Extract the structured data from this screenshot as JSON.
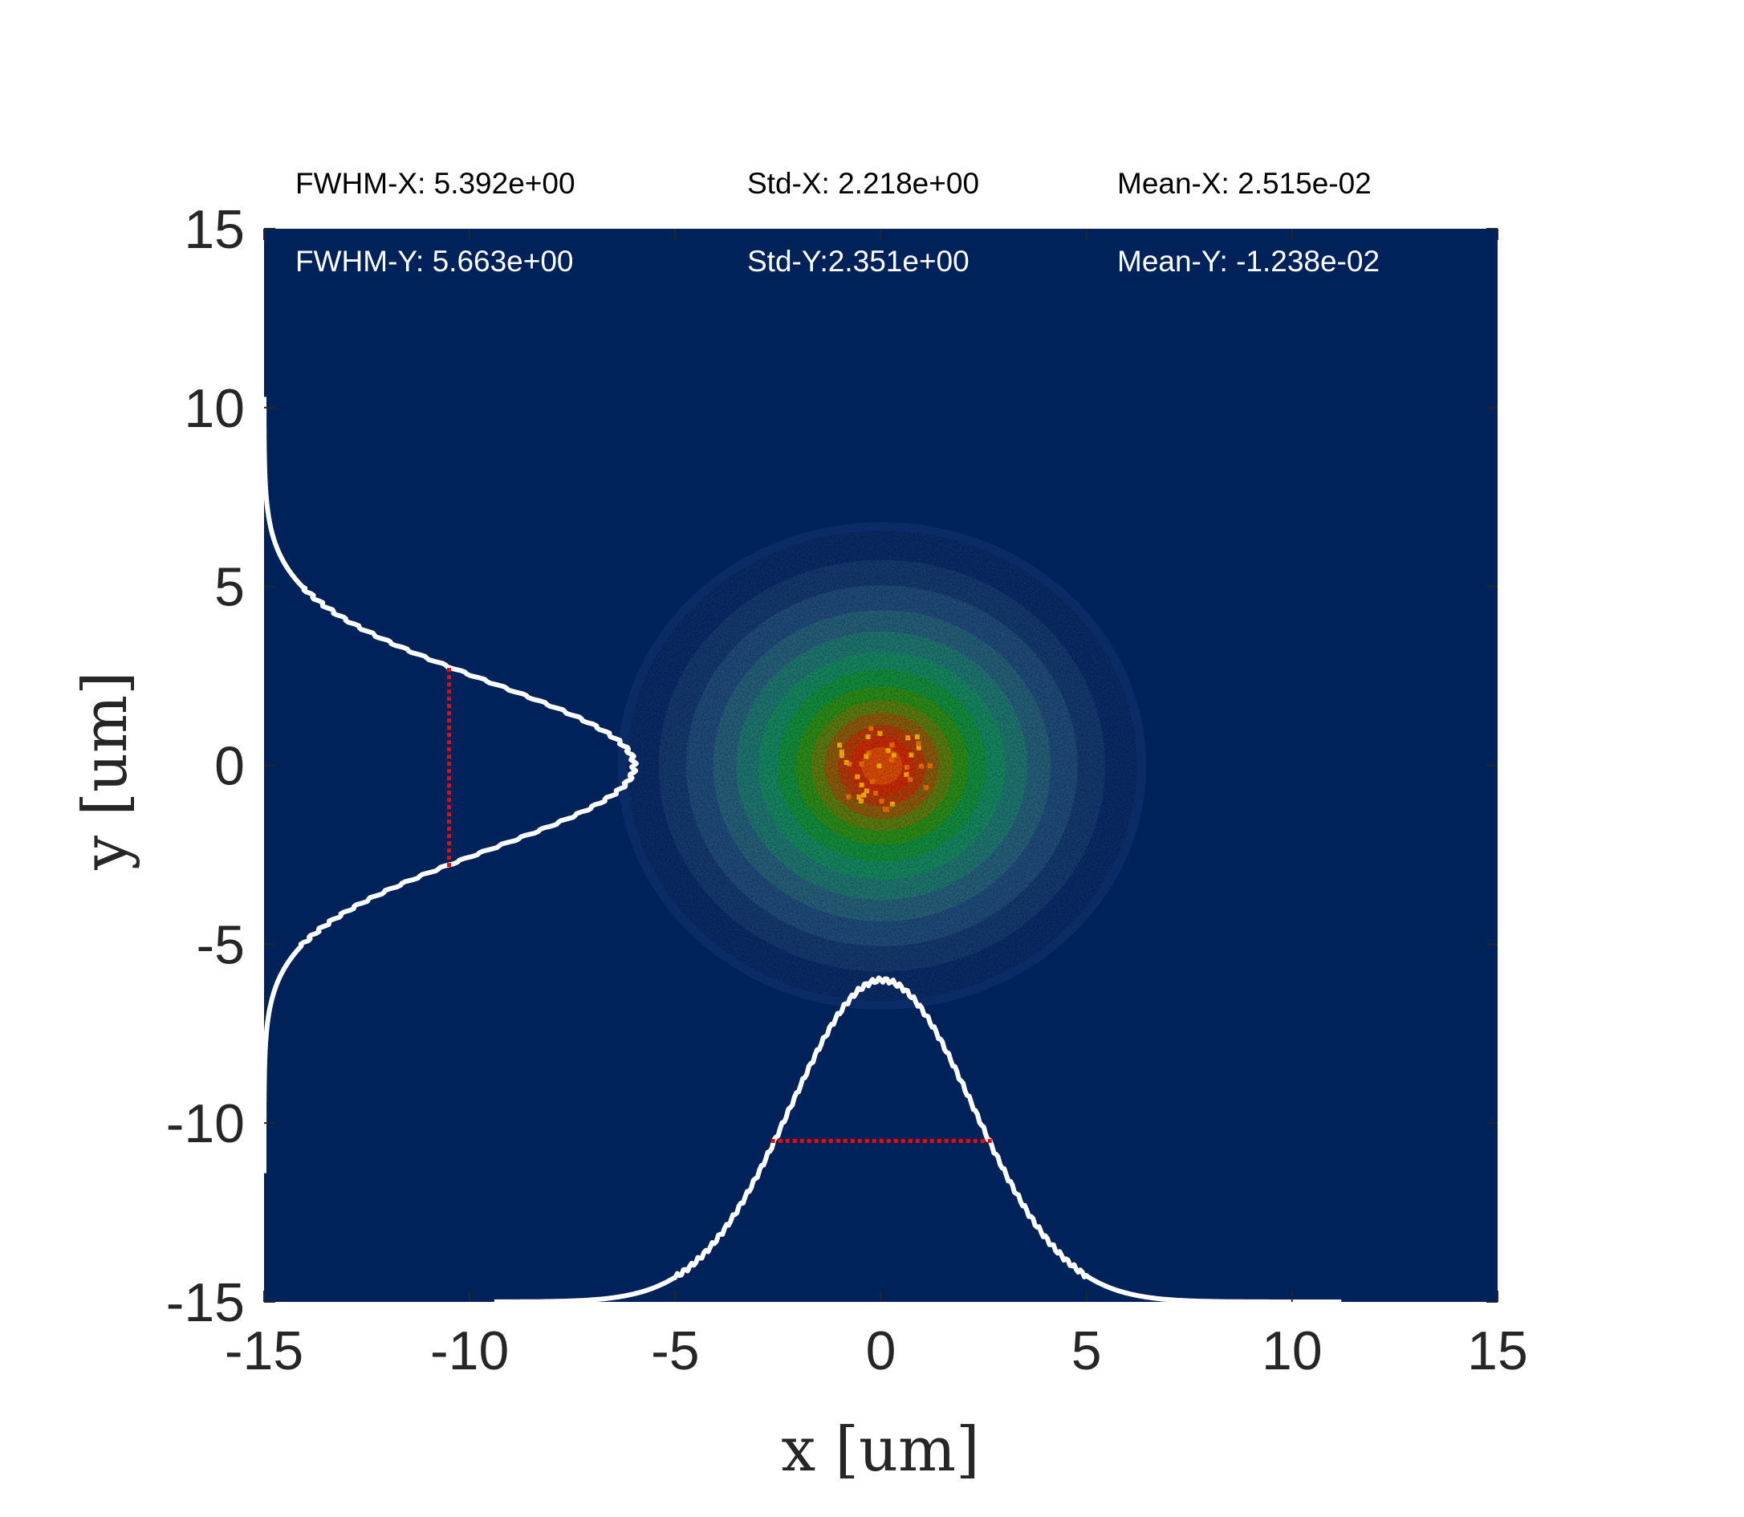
{
  "chart_data": {
    "type": "heatmap",
    "title": "",
    "xlabel": "x [um]",
    "ylabel": "y [um]",
    "xlim": [
      -15,
      15
    ],
    "ylim": [
      -15,
      15
    ],
    "xticks": [
      -15,
      -10,
      -5,
      0,
      5,
      10,
      15
    ],
    "yticks": [
      -15,
      -10,
      -5,
      0,
      5,
      10,
      15
    ],
    "xtick_labels": [
      "-15",
      "-10",
      "-5",
      "0",
      "5",
      "10",
      "15"
    ],
    "ytick_labels": [
      "-15",
      "-10",
      "-5",
      "0",
      "5",
      "10",
      "15"
    ],
    "colormap": "jet",
    "background_color": "#00225a",
    "beam": {
      "mean_x": 0.02515,
      "mean_y": -0.01238,
      "std_x": 2.218,
      "std_y": 2.351,
      "fwhm_x": 5.392,
      "fwhm_y": 5.663
    },
    "x_profile": {
      "baseline_y": -15,
      "peak_y": -6,
      "x_range": [
        -9.4,
        11.2
      ],
      "fwhm_line": {
        "x": [
          -2.67,
          2.72
        ],
        "y": -10.5,
        "color": "#ff0000"
      }
    },
    "y_profile": {
      "baseline_x": -15,
      "peak_x": -6,
      "y_range": [
        -11.4,
        10.3
      ],
      "fwhm_line": {
        "y": [
          -2.84,
          2.82
        ],
        "x": -10.5,
        "color": "#ff0000"
      }
    },
    "stats_text": {
      "fwhm_x": "FWHM-X: 5.392e+00",
      "fwhm_y": "FWHM-Y: 5.663e+00",
      "std_x": "Std-X: 2.218e+00",
      "std_y": "Std-Y:2.351e+00",
      "mean_x": "Mean-X: 2.515e-02",
      "mean_y": "Mean-Y: -1.238e-02"
    },
    "profile_color": "#ffffff",
    "grid": false,
    "legend": "none"
  }
}
